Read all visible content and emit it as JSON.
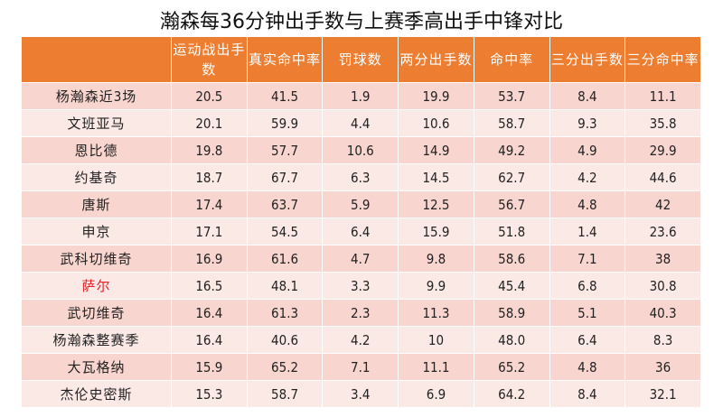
{
  "title": "瀚森每36分钟出手数与上赛季高出手中锋对比",
  "headers": [
    "",
    "运动战出手数",
    "真实命中率",
    "罚球数",
    "两分出手数",
    "命中率",
    "三分出手数",
    "三分命中率"
  ],
  "highlight_color": "#e8202a",
  "rows": [
    {
      "name": "杨瀚森近3场",
      "values": [
        "20.5",
        "41.5",
        "1.9",
        "19.9",
        "53.7",
        "8.4",
        "11.1"
      ]
    },
    {
      "name": "文班亚马",
      "values": [
        "20.1",
        "59.9",
        "4.4",
        "10.6",
        "58.7",
        "9.3",
        "35.8"
      ]
    },
    {
      "name": "恩比德",
      "values": [
        "19.8",
        "57.7",
        "10.6",
        "14.9",
        "49.2",
        "4.9",
        "29.9"
      ]
    },
    {
      "name": "约基奇",
      "values": [
        "18.7",
        "67.7",
        "6.3",
        "14.5",
        "62.7",
        "4.2",
        "44.6"
      ]
    },
    {
      "name": "唐斯",
      "values": [
        "17.4",
        "63.7",
        "5.9",
        "12.5",
        "56.7",
        "4.8",
        "42"
      ]
    },
    {
      "name": "申京",
      "values": [
        "17.1",
        "54.5",
        "6.4",
        "15.9",
        "51.8",
        "1.4",
        "23.6"
      ]
    },
    {
      "name": "武科切维奇",
      "values": [
        "16.9",
        "61.6",
        "4.7",
        "9.8",
        "58.6",
        "7.1",
        "38"
      ]
    },
    {
      "name": "萨尔",
      "highlight": true,
      "values": [
        "16.5",
        "48.1",
        "3.3",
        "9.9",
        "45.4",
        "6.8",
        "30.8"
      ]
    },
    {
      "name": "武切维奇",
      "values": [
        "16.4",
        "61.3",
        "2.3",
        "11.3",
        "58.9",
        "5.1",
        "40.3"
      ]
    },
    {
      "name": "杨瀚森整赛季",
      "values": [
        "16.4",
        "40.6",
        "4.2",
        "10",
        "48.0",
        "6.4",
        "8.3"
      ]
    },
    {
      "name": "大瓦格纳",
      "values": [
        "15.9",
        "65.2",
        "7.1",
        "11.1",
        "65.2",
        "4.8",
        "36"
      ]
    },
    {
      "name": "杰伦史密斯",
      "values": [
        "15.3",
        "58.7",
        "3.4",
        "6.9",
        "64.2",
        "8.4",
        "32.1"
      ]
    }
  ]
}
